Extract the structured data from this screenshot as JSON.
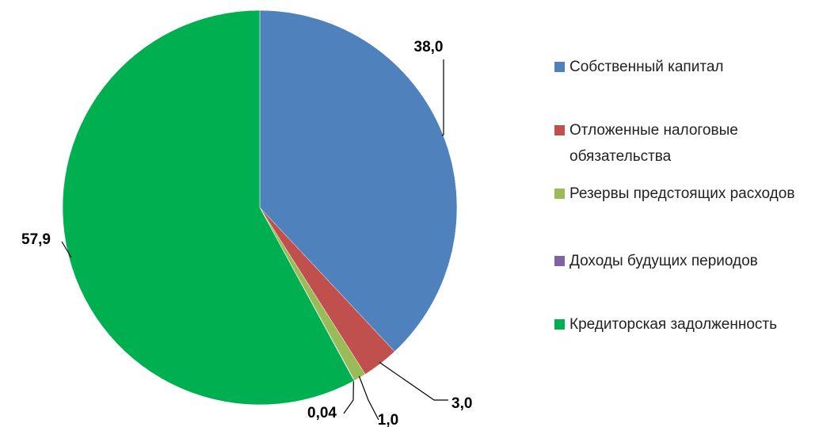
{
  "chart_data": {
    "type": "pie",
    "categories": [
      "Собственный капитал",
      "Отложенные налоговые обязательства",
      "Резервы предстоящих расходов",
      "Доходы будущих периодов",
      "Кредиторская задолженность"
    ],
    "values": [
      38.0,
      3.0,
      1.0,
      0.04,
      57.9
    ],
    "value_labels": [
      "38,0",
      "3,0",
      "1,0",
      "0,04",
      "57,9"
    ],
    "colors": [
      "#4f81bd",
      "#c0504d",
      "#9bbb59",
      "#8064a2",
      "#00b050"
    ],
    "legend": "right"
  }
}
